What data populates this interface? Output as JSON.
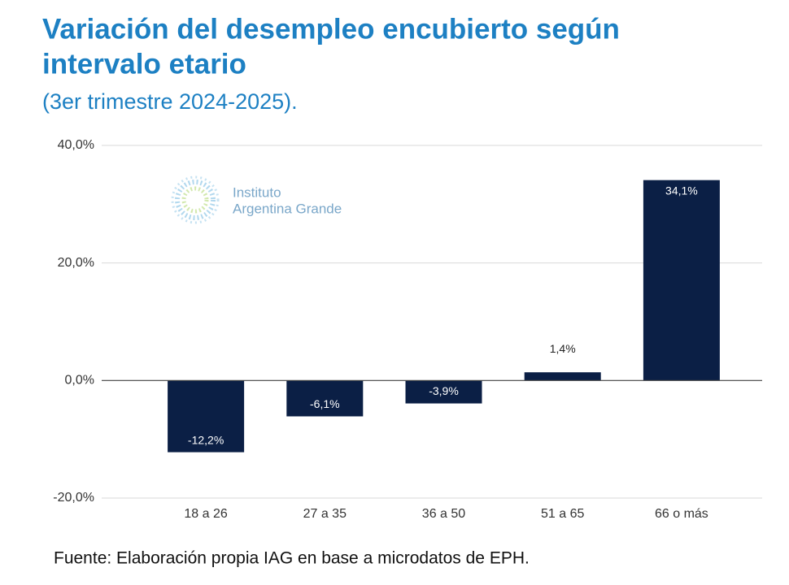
{
  "chart_data": {
    "type": "bar",
    "title": "Variación del desempleo encubierto según intervalo etario",
    "subtitle": "(3er trimestre 2024-2025).",
    "categories": [
      "18 a 26",
      "27 a 35",
      "36 a 50",
      "51 a 65",
      "66 o más"
    ],
    "values": [
      -12.2,
      -6.1,
      -3.9,
      1.4,
      34.1
    ],
    "value_labels": [
      "-12,2%",
      "-6,1%",
      "-3,9%",
      "1,4%",
      "34,1%"
    ],
    "color": "#0b1f45",
    "ylim": [
      -20,
      40
    ],
    "yticks": [
      {
        "value": -20,
        "label": "-20,0%"
      },
      {
        "value": 0,
        "label": "0,0%"
      },
      {
        "value": 20,
        "label": "20,0%"
      },
      {
        "value": 40,
        "label": "40,0%"
      }
    ],
    "grid": true,
    "source": "Fuente: Elaboración propia IAG en base a microdatos de EPH.",
    "logo": [
      "Instituto",
      "Argentina Grande"
    ]
  }
}
